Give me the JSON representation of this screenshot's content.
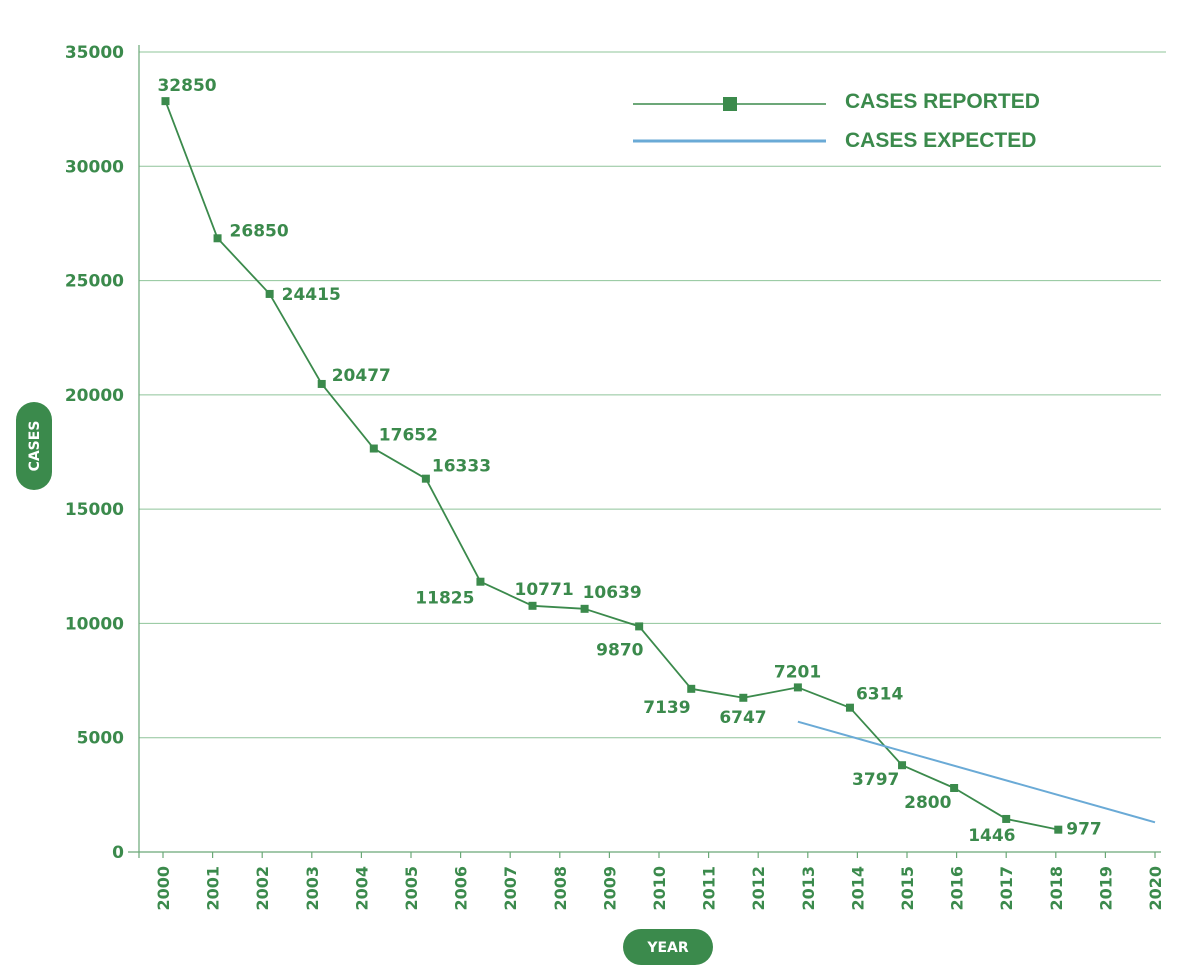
{
  "colors": {
    "reported": "#3b8a4c",
    "expected": "#6aaad6",
    "grid": "#8fc49a",
    "text": "#3b8a4c",
    "pill": "#3b8a4c"
  },
  "chart_data": {
    "type": "line",
    "xlabel": "YEAR",
    "ylabel": "CASES",
    "ylim": [
      0,
      35000
    ],
    "yticks": [
      0,
      5000,
      10000,
      15000,
      20000,
      25000,
      30000,
      35000
    ],
    "categories": [
      "2000",
      "2001",
      "2002",
      "2003",
      "2004",
      "2005",
      "2006",
      "2007",
      "2008",
      "2009",
      "2010",
      "2011",
      "2012",
      "2013",
      "2014",
      "2015",
      "2016",
      "2017",
      "2018",
      "2019",
      "2020"
    ],
    "grid": true,
    "legend_position": "top-right",
    "series": [
      {
        "name": "CASES REPORTED",
        "marker": "square",
        "x": [
          2000.05,
          2001.1,
          2002.15,
          2003.2,
          2004.25,
          2005.3,
          2006.4,
          2007.45,
          2008.5,
          2009.6,
          2010.65,
          2011.7,
          2012.8,
          2013.85,
          2014.9,
          2015.95,
          2017.0,
          2018.05
        ],
        "labels": [
          "32850",
          "26850",
          "24415",
          "20477",
          "17652",
          "16333",
          "11825",
          "10771",
          "10639",
          "9870",
          "7139",
          "6747",
          "7201",
          "6314",
          "3797",
          "2800",
          "1446",
          "977"
        ],
        "values": [
          32850,
          26850,
          24415,
          20477,
          17652,
          16333,
          11825,
          10771,
          10639,
          9870,
          7139,
          6747,
          7201,
          6314,
          3797,
          2800,
          1446,
          977
        ]
      },
      {
        "name": "CASES EXPECTED",
        "marker": "none",
        "x": [
          2012.8,
          2020.0
        ],
        "values": [
          5700,
          1300
        ]
      }
    ]
  }
}
